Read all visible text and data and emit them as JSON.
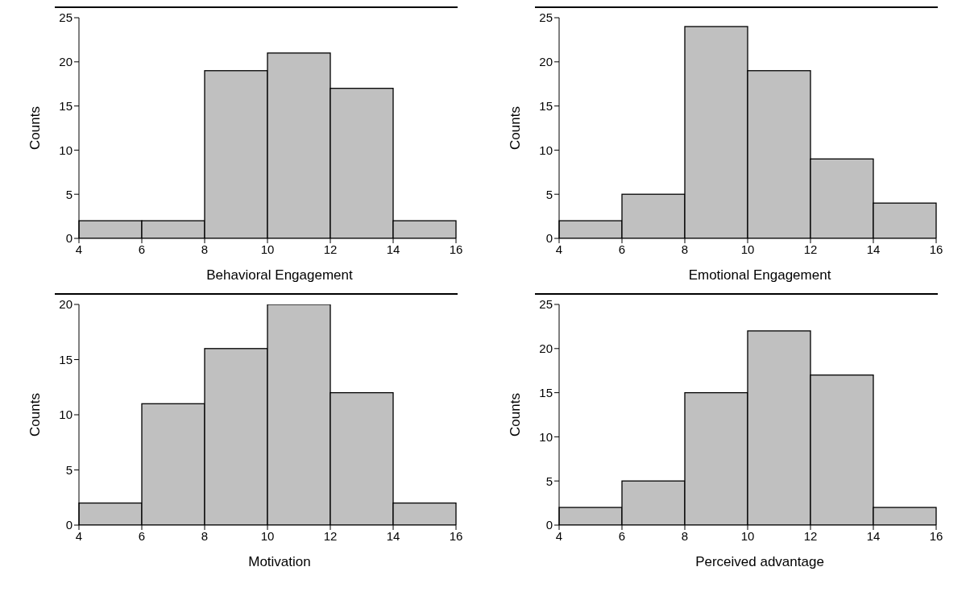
{
  "chart_data": [
    {
      "type": "histogram",
      "xlabel": "Behavioral Engagement",
      "ylabel": "Counts",
      "bins": [
        4,
        6,
        8,
        10,
        12,
        14,
        16
      ],
      "values": [
        2,
        2,
        19,
        21,
        17,
        2
      ],
      "color": "#c0c0c0",
      "xlim": [
        4,
        16
      ],
      "xticks": [
        4,
        6,
        8,
        10,
        12,
        14,
        16
      ],
      "ylim": [
        0,
        25
      ],
      "yticks": [
        0,
        5,
        10,
        15,
        20,
        25
      ]
    },
    {
      "type": "histogram",
      "xlabel": "Emotional Engagement",
      "ylabel": "Counts",
      "bins": [
        4,
        6,
        8,
        10,
        12,
        14,
        16
      ],
      "values": [
        2,
        5,
        24,
        19,
        9,
        4
      ],
      "color": "#c0c0c0",
      "xlim": [
        4,
        16
      ],
      "xticks": [
        4,
        6,
        8,
        10,
        12,
        14,
        16
      ],
      "ylim": [
        0,
        25
      ],
      "yticks": [
        0,
        5,
        10,
        15,
        20,
        25
      ]
    },
    {
      "type": "histogram",
      "xlabel": "Motivation",
      "ylabel": "Counts",
      "bins": [
        4,
        6,
        8,
        10,
        12,
        14,
        16
      ],
      "values": [
        2,
        11,
        16,
        20,
        12,
        2
      ],
      "color": "#c0c0c0",
      "xlim": [
        4,
        16
      ],
      "xticks": [
        4,
        6,
        8,
        10,
        12,
        14,
        16
      ],
      "ylim": [
        0,
        20
      ],
      "yticks": [
        0,
        5,
        10,
        15,
        20
      ]
    },
    {
      "type": "histogram",
      "xlabel": "Perceived advantage",
      "ylabel": "Counts",
      "bins": [
        4,
        6,
        8,
        10,
        12,
        14,
        16
      ],
      "values": [
        2,
        5,
        15,
        22,
        17,
        2
      ],
      "color": "#c0c0c0",
      "xlim": [
        4,
        16
      ],
      "xticks": [
        4,
        6,
        8,
        10,
        12,
        14,
        16
      ],
      "ylim": [
        0,
        25
      ],
      "yticks": [
        0,
        5,
        10,
        15,
        20,
        25
      ]
    }
  ]
}
